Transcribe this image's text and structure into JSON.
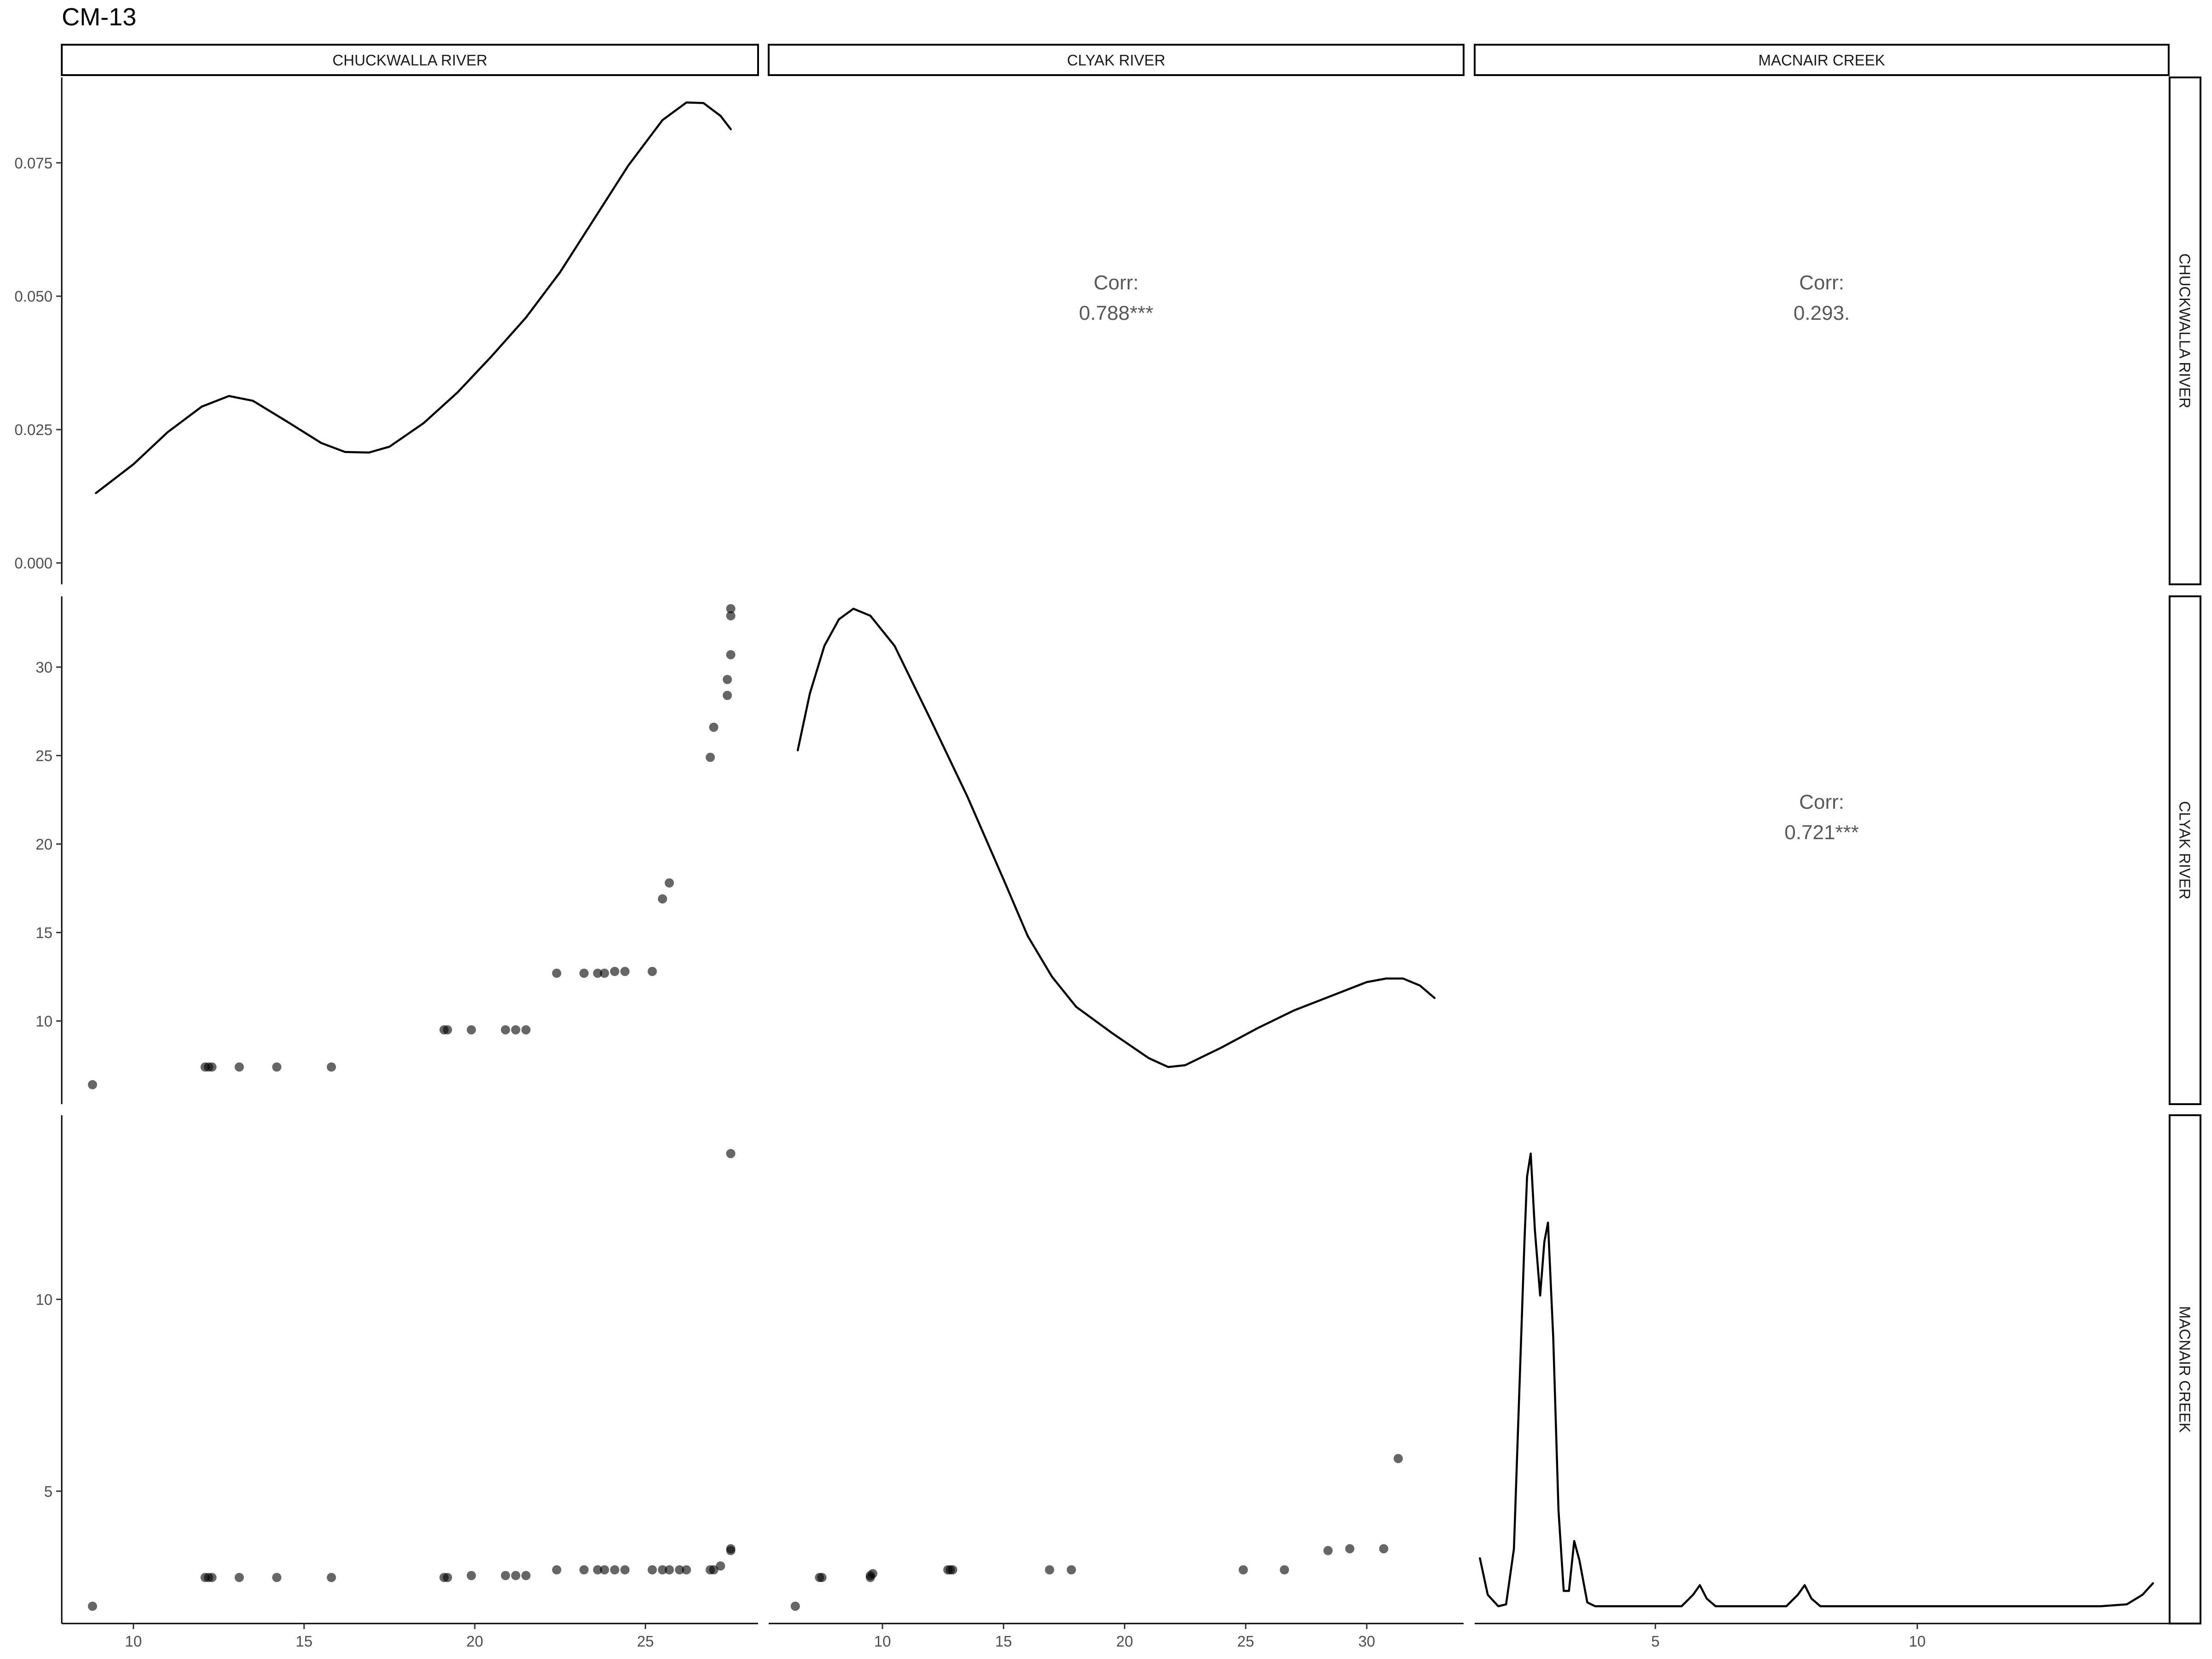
{
  "title": "CM-13",
  "variables": [
    "CHUCKWALLA RIVER",
    "CLYAK RIVER",
    "MACNAIR CREEK"
  ],
  "colors": {
    "line": "#000000",
    "point": "#000000",
    "point_opacity": 0.6,
    "corr_text": "#595959",
    "background": "#ffffff"
  },
  "chart_data": {
    "type": "scatter",
    "subtype": "pairs-plot matrix (scatter, density, correlation)",
    "title": "CM-13",
    "grid": false,
    "facet_labels_top": [
      "CHUCKWALLA RIVER",
      "CLYAK RIVER",
      "MACNAIR CREEK"
    ],
    "facet_labels_right": [
      "CHUCKWALLA RIVER",
      "CLYAK RIVER",
      "MACNAIR CREEK"
    ],
    "axes": {
      "x": [
        {
          "variable": "CHUCKWALLA RIVER",
          "range": [
            7.9,
            28.3
          ],
          "ticks": [
            10,
            15,
            20,
            25
          ]
        },
        {
          "variable": "CLYAK RIVER",
          "range": [
            5.3,
            34.0
          ],
          "ticks": [
            10,
            15,
            20,
            25,
            30
          ]
        },
        {
          "variable": "MACNAIR CREEK",
          "range": [
            1.55,
            14.8
          ],
          "ticks": [
            5,
            10
          ]
        }
      ],
      "y": [
        {
          "variable": "CHUCKWALLA RIVER",
          "range": [
            -0.004,
            0.091
          ],
          "ticks": [
            "0.000",
            "0.025",
            "0.050",
            "0.075"
          ]
        },
        {
          "variable": "CLYAK RIVER",
          "range": [
            5.3,
            34.0
          ],
          "ticks": [
            10,
            15,
            20,
            25,
            30
          ]
        },
        {
          "variable": "MACNAIR CREEK",
          "range": [
            1.55,
            14.8
          ],
          "ticks": [
            5,
            10
          ]
        }
      ]
    },
    "correlations": [
      {
        "row": "CHUCKWALLA RIVER",
        "col": "CLYAK RIVER",
        "label": "Corr:",
        "value": "0.788***"
      },
      {
        "row": "CHUCKWALLA RIVER",
        "col": "MACNAIR CREEK",
        "label": "Corr:",
        "value": "0.293."
      },
      {
        "row": "CLYAK RIVER",
        "col": "MACNAIR CREEK",
        "label": "Corr:",
        "value": "0.721***"
      }
    ],
    "densities": [
      {
        "variable": "CHUCKWALLA RIVER",
        "x": [
          8.9,
          10,
          11,
          12,
          12.8,
          13.5,
          14.5,
          15.5,
          16.2,
          16.9,
          17.5,
          18.5,
          19.5,
          20.5,
          21.5,
          22.5,
          23.5,
          24.5,
          25.5,
          26.2,
          26.7,
          27.2,
          27.5
        ],
        "y": [
          0.0131,
          0.0185,
          0.0245,
          0.0293,
          0.0313,
          0.0304,
          0.0265,
          0.0225,
          0.0208,
          0.0207,
          0.0218,
          0.0262,
          0.032,
          0.0388,
          0.046,
          0.0545,
          0.0645,
          0.0745,
          0.083,
          0.0863,
          0.0862,
          0.0838,
          0.0813
        ]
      },
      {
        "variable": "CLYAK RIVER",
        "x": [
          6.5,
          7,
          7.6,
          8.2,
          8.8,
          9.5,
          10.5,
          12,
          13.5,
          15,
          16,
          17,
          18,
          19.5,
          21,
          21.8,
          22.5,
          24,
          25.5,
          27,
          28.5,
          30,
          30.8,
          31.5,
          32.2,
          32.8
        ],
        "y": [
          25.3,
          28.5,
          31.2,
          32.7,
          33.3,
          32.9,
          31.2,
          27.0,
          22.7,
          18.0,
          14.8,
          12.5,
          10.8,
          9.3,
          7.9,
          7.4,
          7.5,
          8.5,
          9.6,
          10.6,
          11.4,
          12.2,
          12.4,
          12.4,
          12.0,
          11.3
        ]
      },
      {
        "variable": "MACNAIR CREEK",
        "x": [
          1.65,
          1.8,
          2.0,
          2.15,
          2.3,
          2.4,
          2.5,
          2.55,
          2.62,
          2.7,
          2.8,
          2.88,
          2.95,
          3.05,
          3.15,
          3.25,
          3.35,
          3.45,
          3.55,
          3.7,
          3.85,
          5.5,
          5.72,
          5.85,
          5.98,
          6.15,
          7.5,
          7.72,
          7.85,
          7.98,
          8.15,
          13.5,
          14.0,
          14.3,
          14.5
        ],
        "y": [
          3.25,
          2.3,
          2.0,
          2.05,
          3.5,
          7.5,
          11.5,
          13.2,
          13.8,
          11.8,
          10.1,
          11.5,
          12.0,
          9.0,
          4.5,
          2.4,
          2.4,
          3.7,
          3.2,
          2.1,
          2.0,
          2.0,
          2.3,
          2.55,
          2.2,
          2.0,
          2.0,
          2.3,
          2.55,
          2.2,
          2.0,
          2.0,
          2.05,
          2.3,
          2.6
        ]
      }
    ],
    "scatter": [
      {
        "row": "CLYAK RIVER",
        "col": "CHUCKWALLA RIVER",
        "x": [
          8.8,
          12.1,
          12.2,
          12.3,
          13.1,
          14.2,
          15.8,
          19.1,
          19.2,
          19.9,
          20.9,
          21.2,
          21.5,
          22.4,
          23.2,
          23.6,
          23.8,
          24.1,
          24.4,
          25.2,
          25.5,
          25.7,
          26.9,
          27.0,
          27.4,
          27.4,
          27.5,
          27.5,
          27.5
        ],
        "y": [
          6.4,
          7.4,
          7.4,
          7.4,
          7.4,
          7.4,
          7.4,
          9.5,
          9.5,
          9.5,
          9.5,
          9.5,
          9.5,
          12.7,
          12.7,
          12.7,
          12.7,
          12.8,
          12.8,
          12.8,
          16.9,
          17.8,
          24.9,
          26.6,
          28.4,
          29.3,
          30.7,
          32.9,
          33.3
        ]
      },
      {
        "row": "MACNAIR CREEK",
        "col": "CHUCKWALLA RIVER",
        "x": [
          8.8,
          12.1,
          12.2,
          12.3,
          13.1,
          14.2,
          15.8,
          19.1,
          19.2,
          19.9,
          20.9,
          21.2,
          21.5,
          22.4,
          23.2,
          23.6,
          23.8,
          24.1,
          24.4,
          25.2,
          25.5,
          25.7,
          26.0,
          26.2,
          26.9,
          27.0,
          27.2,
          27.5,
          27.5,
          27.5
        ],
        "y": [
          2.0,
          2.75,
          2.75,
          2.75,
          2.75,
          2.75,
          2.75,
          2.75,
          2.75,
          2.8,
          2.8,
          2.8,
          2.8,
          2.95,
          2.95,
          2.95,
          2.95,
          2.95,
          2.95,
          2.95,
          2.95,
          2.95,
          2.95,
          2.95,
          2.95,
          2.95,
          3.05,
          3.45,
          3.5,
          13.8
        ]
      },
      {
        "row": "MACNAIR CREEK",
        "col": "CLYAK RIVER",
        "x": [
          6.4,
          7.4,
          7.5,
          9.5,
          9.5,
          9.6,
          12.7,
          12.8,
          12.9,
          16.9,
          17.8,
          24.9,
          26.6,
          28.4,
          29.3,
          30.7,
          31.3
        ],
        "y": [
          2.0,
          2.75,
          2.75,
          2.75,
          2.8,
          2.85,
          2.95,
          2.95,
          2.95,
          2.95,
          2.95,
          2.95,
          2.95,
          3.45,
          3.5,
          3.5,
          5.85
        ]
      }
    ]
  }
}
